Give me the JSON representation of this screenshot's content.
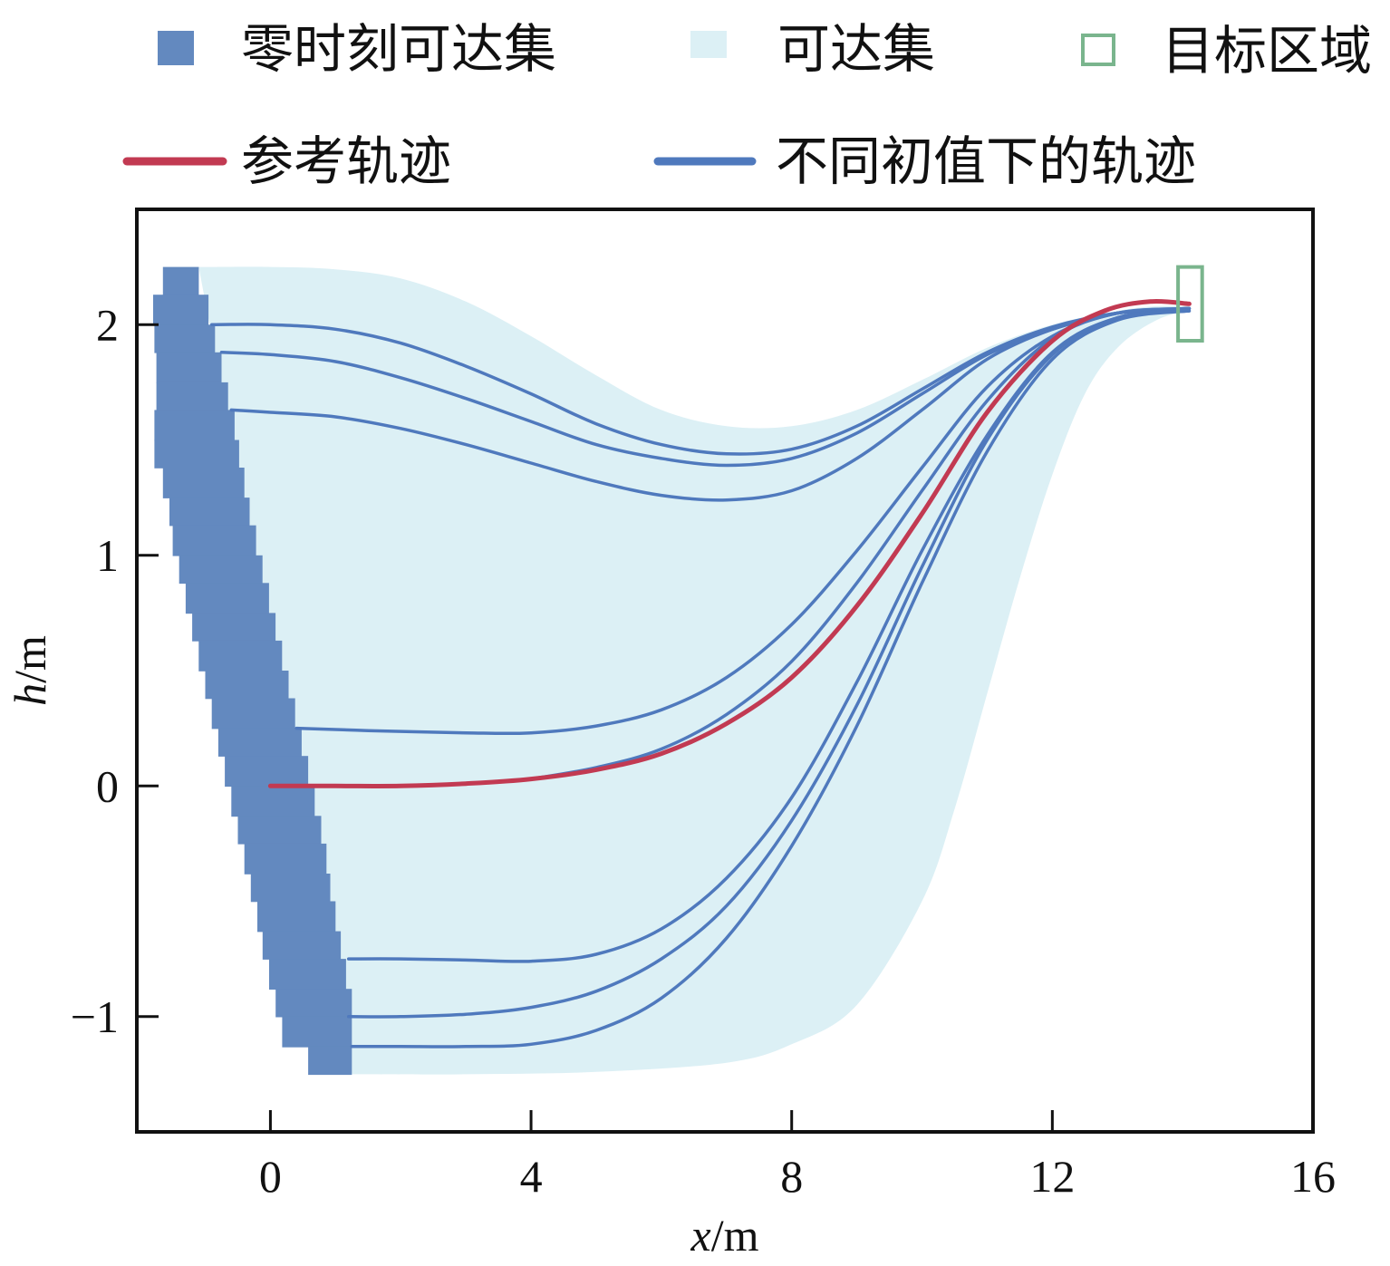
{
  "chart_data": {
    "type": "line",
    "xlabel": {
      "var": "x",
      "unit": "/m"
    },
    "ylabel": {
      "var": "h",
      "unit": "/m"
    },
    "xlim": [
      -2.05,
      16
    ],
    "ylim": [
      -1.5,
      2.5
    ],
    "xticks": [
      0,
      4,
      8,
      12,
      16
    ],
    "yticks": [
      -1,
      0,
      1,
      2
    ],
    "xtick_labels": [
      "0",
      "4",
      "8",
      "12",
      "16"
    ],
    "ytick_labels": [
      "−1",
      "0",
      "1",
      "2"
    ],
    "grid": false,
    "legend_position": "top",
    "legend": [
      {
        "label": "零时刻可达集",
        "kind": "square-filled",
        "color": "#6389bf"
      },
      {
        "label": "可达集",
        "kind": "square-filled",
        "color": "#dcf0f5"
      },
      {
        "label": "目标区域",
        "kind": "square-outline",
        "color": "#7ab58d"
      },
      {
        "label": "参考轨迹",
        "kind": "line",
        "color": "#c23a52"
      },
      {
        "label": "不同初值下的轨迹",
        "kind": "line",
        "color": "#4f79bd"
      }
    ],
    "zero_time_reachable_set": {
      "name": "零时刻可达集",
      "color": "#6389bf",
      "rows": [
        {
          "h0": 2.25,
          "h1": 2.13,
          "x0": -1.65,
          "x1": -1.1
        },
        {
          "h0": 2.13,
          "h1": 2.0,
          "x0": -1.8,
          "x1": -0.95
        },
        {
          "h0": 2.0,
          "h1": 1.88,
          "x0": -1.78,
          "x1": -0.85
        },
        {
          "h0": 1.88,
          "h1": 1.75,
          "x0": -1.75,
          "x1": -0.75
        },
        {
          "h0": 1.75,
          "h1": 1.63,
          "x0": -1.75,
          "x1": -0.65
        },
        {
          "h0": 1.63,
          "h1": 1.5,
          "x0": -1.78,
          "x1": -0.55
        },
        {
          "h0": 1.5,
          "h1": 1.38,
          "x0": -1.78,
          "x1": -0.48
        },
        {
          "h0": 1.38,
          "h1": 1.25,
          "x0": -1.65,
          "x1": -0.4
        },
        {
          "h0": 1.25,
          "h1": 1.13,
          "x0": -1.55,
          "x1": -0.32
        },
        {
          "h0": 1.13,
          "h1": 1.0,
          "x0": -1.5,
          "x1": -0.22
        },
        {
          "h0": 1.0,
          "h1": 0.88,
          "x0": -1.4,
          "x1": -0.12
        },
        {
          "h0": 0.88,
          "h1": 0.75,
          "x0": -1.3,
          "x1": -0.02
        },
        {
          "h0": 0.75,
          "h1": 0.63,
          "x0": -1.2,
          "x1": 0.08
        },
        {
          "h0": 0.63,
          "h1": 0.5,
          "x0": -1.1,
          "x1": 0.18
        },
        {
          "h0": 0.5,
          "h1": 0.38,
          "x0": -1.0,
          "x1": 0.28
        },
        {
          "h0": 0.38,
          "h1": 0.25,
          "x0": -0.9,
          "x1": 0.38
        },
        {
          "h0": 0.25,
          "h1": 0.13,
          "x0": -0.8,
          "x1": 0.48
        },
        {
          "h0": 0.13,
          "h1": 0.0,
          "x0": -0.7,
          "x1": 0.58
        },
        {
          "h0": 0.0,
          "h1": -0.13,
          "x0": -0.6,
          "x1": 0.68
        },
        {
          "h0": -0.13,
          "h1": -0.25,
          "x0": -0.5,
          "x1": 0.78
        },
        {
          "h0": -0.25,
          "h1": -0.38,
          "x0": -0.4,
          "x1": 0.86
        },
        {
          "h0": -0.38,
          "h1": -0.5,
          "x0": -0.3,
          "x1": 0.92
        },
        {
          "h0": -0.5,
          "h1": -0.63,
          "x0": -0.2,
          "x1": 1.0
        },
        {
          "h0": -0.63,
          "h1": -0.75,
          "x0": -0.12,
          "x1": 1.08
        },
        {
          "h0": -0.75,
          "h1": -0.88,
          "x0": -0.02,
          "x1": 1.16
        },
        {
          "h0": -0.88,
          "h1": -1.0,
          "x0": 0.08,
          "x1": 1.25
        },
        {
          "h0": -1.0,
          "h1": -1.13,
          "x0": 0.18,
          "x1": 1.25
        },
        {
          "h0": -1.13,
          "h1": -1.25,
          "x0": 0.58,
          "x1": 1.25
        }
      ]
    },
    "reachable_set": {
      "name": "可达集",
      "color": "#dcf0f5",
      "upper": [
        [
          -1.1,
          2.25
        ],
        [
          0,
          2.25
        ],
        [
          1,
          2.24
        ],
        [
          2,
          2.2
        ],
        [
          3,
          2.1
        ],
        [
          4,
          1.95
        ],
        [
          5,
          1.78
        ],
        [
          6,
          1.63
        ],
        [
          7,
          1.56
        ],
        [
          8,
          1.56
        ],
        [
          9,
          1.63
        ],
        [
          10,
          1.76
        ],
        [
          11,
          1.9
        ],
        [
          12,
          2.0
        ],
        [
          13,
          2.06
        ],
        [
          13.6,
          2.08
        ],
        [
          14.1,
          2.08
        ]
      ],
      "lower": [
        [
          14.1,
          2.06
        ],
        [
          13.6,
          2.02
        ],
        [
          13,
          1.9
        ],
        [
          12.5,
          1.7
        ],
        [
          12,
          1.35
        ],
        [
          11.5,
          0.9
        ],
        [
          11,
          0.4
        ],
        [
          10.5,
          -0.1
        ],
        [
          10,
          -0.5
        ],
        [
          9,
          -0.95
        ],
        [
          8,
          -1.12
        ],
        [
          7,
          -1.2
        ],
        [
          5,
          -1.24
        ],
        [
          3,
          -1.25
        ],
        [
          1.25,
          -1.25
        ]
      ]
    },
    "target_region": {
      "name": "目标区域",
      "x": [
        13.93,
        14.3
      ],
      "h": [
        1.93,
        2.25
      ],
      "color": "#7ab58d"
    },
    "reference_trajectory": {
      "name": "参考轨迹",
      "color": "#c23a52",
      "points": [
        [
          0,
          0
        ],
        [
          1,
          0
        ],
        [
          2,
          0
        ],
        [
          3,
          0.01
        ],
        [
          4,
          0.03
        ],
        [
          5,
          0.07
        ],
        [
          6,
          0.14
        ],
        [
          7,
          0.27
        ],
        [
          8,
          0.47
        ],
        [
          9,
          0.78
        ],
        [
          10,
          1.18
        ],
        [
          11,
          1.62
        ],
        [
          12,
          1.93
        ],
        [
          12.8,
          2.06
        ],
        [
          13.5,
          2.1
        ],
        [
          14.1,
          2.09
        ]
      ]
    },
    "trajectories": {
      "name": "不同初值下的轨迹",
      "color": "#4f79bd",
      "series": [
        {
          "values": [
            [
              -0.9,
              2.0
            ],
            [
              0,
              2.0
            ],
            [
              1,
              1.98
            ],
            [
              2,
              1.92
            ],
            [
              3,
              1.82
            ],
            [
              4,
              1.7
            ],
            [
              5,
              1.57
            ],
            [
              6,
              1.48
            ],
            [
              7,
              1.44
            ],
            [
              8,
              1.46
            ],
            [
              9,
              1.56
            ],
            [
              10,
              1.72
            ],
            [
              11,
              1.88
            ],
            [
              12,
              1.99
            ],
            [
              13,
              2.05
            ],
            [
              14.1,
              2.07
            ]
          ]
        },
        {
          "values": [
            [
              -0.75,
              1.88
            ],
            [
              0,
              1.87
            ],
            [
              1,
              1.84
            ],
            [
              2,
              1.77
            ],
            [
              3,
              1.68
            ],
            [
              4,
              1.58
            ],
            [
              5,
              1.48
            ],
            [
              6,
              1.42
            ],
            [
              7,
              1.39
            ],
            [
              8,
              1.42
            ],
            [
              9,
              1.53
            ],
            [
              10,
              1.7
            ],
            [
              11,
              1.87
            ],
            [
              12,
              1.98
            ],
            [
              13,
              2.05
            ],
            [
              14.1,
              2.07
            ]
          ]
        },
        {
          "values": [
            [
              -0.6,
              1.63
            ],
            [
              0,
              1.62
            ],
            [
              1,
              1.6
            ],
            [
              2,
              1.55
            ],
            [
              3,
              1.48
            ],
            [
              4,
              1.4
            ],
            [
              5,
              1.32
            ],
            [
              6,
              1.26
            ],
            [
              7,
              1.24
            ],
            [
              8,
              1.28
            ],
            [
              9,
              1.42
            ],
            [
              10,
              1.63
            ],
            [
              11,
              1.85
            ],
            [
              12,
              1.98
            ],
            [
              13,
              2.05
            ],
            [
              14.1,
              2.07
            ]
          ]
        },
        {
          "values": [
            [
              0.4,
              0.25
            ],
            [
              1.5,
              0.24
            ],
            [
              3,
              0.23
            ],
            [
              4,
              0.23
            ],
            [
              5,
              0.26
            ],
            [
              6,
              0.33
            ],
            [
              7,
              0.47
            ],
            [
              8,
              0.7
            ],
            [
              9,
              1.02
            ],
            [
              10,
              1.38
            ],
            [
              11,
              1.73
            ],
            [
              12,
              1.95
            ],
            [
              13,
              2.05
            ],
            [
              14.1,
              2.07
            ]
          ]
        },
        {
          "values": [
            [
              4,
              0.03
            ],
            [
              5,
              0.08
            ],
            [
              6,
              0.16
            ],
            [
              7,
              0.31
            ],
            [
              8,
              0.54
            ],
            [
              9,
              0.88
            ],
            [
              10,
              1.28
            ],
            [
              11,
              1.67
            ],
            [
              12,
              1.94
            ],
            [
              13,
              2.05
            ],
            [
              14.1,
              2.07
            ]
          ]
        },
        {
          "values": [
            [
              1.2,
              -0.75
            ],
            [
              2,
              -0.75
            ],
            [
              3,
              -0.755
            ],
            [
              4,
              -0.76
            ],
            [
              5,
              -0.73
            ],
            [
              6,
              -0.62
            ],
            [
              7,
              -0.4
            ],
            [
              8,
              -0.05
            ],
            [
              9,
              0.45
            ],
            [
              10,
              1.02
            ],
            [
              11,
              1.52
            ],
            [
              12,
              1.88
            ],
            [
              13,
              2.03
            ],
            [
              14.1,
              2.06
            ]
          ]
        },
        {
          "values": [
            [
              1.2,
              -1.0
            ],
            [
              2,
              -1.0
            ],
            [
              3,
              -0.99
            ],
            [
              4,
              -0.96
            ],
            [
              5,
              -0.89
            ],
            [
              6,
              -0.75
            ],
            [
              7,
              -0.52
            ],
            [
              8,
              -0.15
            ],
            [
              9,
              0.35
            ],
            [
              10,
              0.95
            ],
            [
              11,
              1.5
            ],
            [
              12,
              1.87
            ],
            [
              13,
              2.03
            ],
            [
              14.1,
              2.06
            ]
          ]
        },
        {
          "values": [
            [
              1.25,
              -1.13
            ],
            [
              2,
              -1.13
            ],
            [
              3,
              -1.13
            ],
            [
              4,
              -1.12
            ],
            [
              5,
              -1.06
            ],
            [
              6,
              -0.92
            ],
            [
              7,
              -0.66
            ],
            [
              8,
              -0.26
            ],
            [
              9,
              0.26
            ],
            [
              10,
              0.88
            ],
            [
              11,
              1.45
            ],
            [
              12,
              1.85
            ],
            [
              13,
              2.02
            ],
            [
              14.1,
              2.06
            ]
          ]
        }
      ]
    }
  }
}
